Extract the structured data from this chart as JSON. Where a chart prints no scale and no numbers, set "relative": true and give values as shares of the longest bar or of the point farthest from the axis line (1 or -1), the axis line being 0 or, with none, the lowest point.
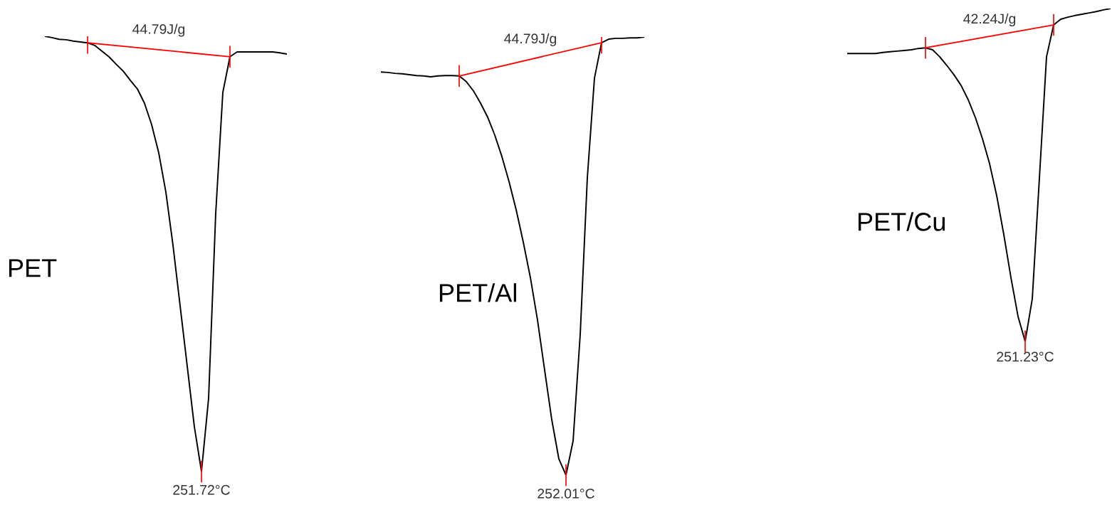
{
  "chart_data": [
    {
      "type": "line",
      "relative": true,
      "categories": [
        null,
        null,
        null,
        null,
        null,
        null,
        null,
        null,
        null,
        null,
        null,
        null,
        null,
        null,
        null,
        null,
        null,
        null,
        null,
        null,
        null,
        null,
        null,
        null,
        null,
        null,
        null,
        null,
        null,
        null,
        null,
        null,
        null,
        null,
        null
      ],
      "series": [
        {
          "name": "PET",
          "color": "#000000",
          "values": [
            1.0,
            0.997,
            0.993,
            0.992,
            0.989,
            0.987,
            0.985,
            0.979,
            0.966,
            0.953,
            0.936,
            0.92,
            0.899,
            0.879,
            0.846,
            0.797,
            0.732,
            0.642,
            0.52,
            0.381,
            0.242,
            0.103,
            0,
            0.168,
            0.593,
            0.871,
            0.953,
            0.964,
            0.964,
            0.964,
            0.964,
            0.964,
            0.964,
            0.962,
            0.959
          ]
        },
        {
          "color": "#ff0000",
          "values": [
            null,
            null,
            null,
            null,
            null,
            null,
            0.985,
            null,
            null,
            null,
            null,
            null,
            null,
            null,
            null,
            null,
            null,
            null,
            null,
            null,
            null,
            null,
            null,
            null,
            null,
            null,
            0.953,
            null,
            null,
            null,
            null,
            null,
            null,
            null,
            null
          ]
        }
      ],
      "annotations": [
        "44.79J/g",
        "251.72°C"
      ]
    },
    {
      "type": "line",
      "relative": true,
      "categories": [
        null,
        null,
        null,
        null,
        null,
        null,
        null,
        null,
        null,
        null,
        null,
        null,
        null,
        null,
        null,
        null,
        null,
        null,
        null,
        null,
        null,
        null,
        null,
        null,
        null,
        null,
        null,
        null,
        null,
        null,
        null,
        null,
        null,
        null,
        null,
        null,
        null,
        null
      ],
      "series": [
        {
          "name": "PET/Al",
          "color": "#000000",
          "values": [
            0.92,
            0.919,
            0.917,
            0.916,
            0.914,
            0.912,
            0.911,
            0.909,
            0.911,
            0.912,
            0.912,
            0.911,
            0.898,
            0.877,
            0.849,
            0.817,
            0.776,
            0.727,
            0.67,
            0.606,
            0.532,
            0.451,
            0.354,
            0.24,
            0.127,
            0.037,
            0,
            0.078,
            0.321,
            0.679,
            0.906,
            0.987,
            0.995,
            0.997,
            0.997,
            0.998,
            0.998,
            1.0
          ]
        },
        {
          "color": "#ff0000",
          "values": [
            null,
            null,
            null,
            null,
            null,
            null,
            null,
            null,
            null,
            null,
            null,
            0.911,
            null,
            null,
            null,
            null,
            null,
            null,
            null,
            null,
            null,
            null,
            null,
            null,
            null,
            null,
            null,
            null,
            null,
            null,
            null,
            0.987,
            null,
            null,
            null,
            null,
            null,
            null
          ]
        }
      ],
      "annotations": [
        "44.79J/g",
        "252.01°C"
      ]
    },
    {
      "type": "line",
      "relative": true,
      "categories": [
        null,
        null,
        null,
        null,
        null,
        null,
        null,
        null,
        null,
        null,
        null,
        null,
        null,
        null,
        null,
        null,
        null,
        null,
        null,
        null,
        null,
        null,
        null,
        null,
        null,
        null,
        null,
        null,
        null,
        null,
        null,
        null,
        null,
        null,
        null,
        null,
        null,
        null
      ],
      "series": [
        {
          "name": "PET/Cu",
          "color": "#000000",
          "values": [
            0.865,
            0.865,
            0.865,
            0.865,
            0.865,
            0.868,
            0.87,
            0.872,
            0.874,
            0.876,
            0.88,
            0.882,
            0.876,
            0.855,
            0.829,
            0.801,
            0.769,
            0.726,
            0.673,
            0.609,
            0.534,
            0.438,
            0.321,
            0.192,
            0.075,
            0,
            0.128,
            0.491,
            0.855,
            0.951,
            0.968,
            0.974,
            0.979,
            0.983,
            0.987,
            0.991,
            0.996,
            1.0
          ]
        },
        {
          "color": "#ff0000",
          "values": [
            null,
            null,
            null,
            null,
            null,
            null,
            null,
            null,
            null,
            null,
            null,
            0.882,
            null,
            null,
            null,
            null,
            null,
            null,
            null,
            null,
            null,
            null,
            null,
            null,
            null,
            null,
            null,
            null,
            null,
            0.951,
            null,
            null,
            null,
            null,
            null,
            null,
            null,
            null
          ]
        }
      ],
      "annotations": [
        "42.24J/g",
        "251.23°C"
      ]
    }
  ]
}
